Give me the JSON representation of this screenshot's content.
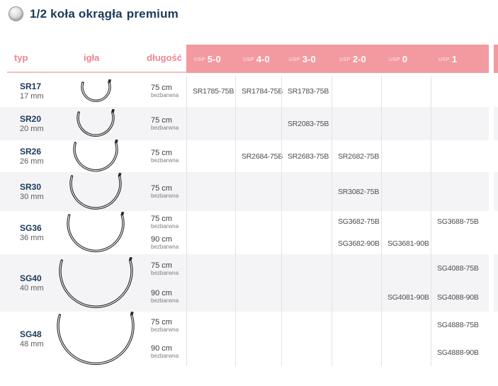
{
  "title": {
    "text": "1/2 koła okrągła",
    "accent": "premium"
  },
  "header": {
    "columns": [
      "typ",
      "igła",
      "długość"
    ],
    "usp_sizes": [
      {
        "prefix": "USP",
        "size": "5-0"
      },
      {
        "prefix": "USP",
        "size": "4-0"
      },
      {
        "prefix": "USP",
        "size": "3-0"
      },
      {
        "prefix": "USP",
        "size": "2-0"
      },
      {
        "prefix": "USP",
        "size": "0"
      },
      {
        "prefix": "USP",
        "size": "1"
      }
    ]
  },
  "colors": {
    "accent_pink": "#f29aa0",
    "pink_text": "#ef858f",
    "navy": "#1a3a5c",
    "row_alt_gray": "#f4f4f6",
    "needle_dark": "#262626"
  },
  "rows": [
    {
      "type": "SR17",
      "size_mm": "17 mm",
      "needle_icon": "half-circle-needle-icon",
      "lengths": [
        {
          "length": "75 cm",
          "color_note": "bezbarwna",
          "codes": [
            "SR1785-75B",
            "SR1784-75B",
            "SR1783-75B",
            "",
            "",
            ""
          ]
        }
      ]
    },
    {
      "type": "SR20",
      "size_mm": "20 mm",
      "needle_icon": "half-circle-needle-icon",
      "lengths": [
        {
          "length": "75 cm",
          "color_note": "bezbarwna",
          "codes": [
            "",
            "",
            "SR2083-75B",
            "",
            "",
            ""
          ]
        }
      ]
    },
    {
      "type": "SR26",
      "size_mm": "26 mm",
      "needle_icon": "half-circle-needle-icon",
      "lengths": [
        {
          "length": "75 cm",
          "color_note": "bezbarwna",
          "codes": [
            "",
            "SR2684-75B",
            "SR2683-75B",
            "SR2682-75B",
            "",
            ""
          ]
        }
      ]
    },
    {
      "type": "SR30",
      "size_mm": "30 mm",
      "needle_icon": "half-circle-needle-icon",
      "lengths": [
        {
          "length": "75 cm",
          "color_note": "bezbarwna",
          "codes": [
            "",
            "",
            "",
            "SR3082-75B",
            "",
            ""
          ]
        }
      ]
    },
    {
      "type": "SG36",
      "size_mm": "36 mm",
      "needle_icon": "half-circle-needle-icon",
      "lengths": [
        {
          "length": "75 cm",
          "color_note": "bezbarwna",
          "codes": [
            "",
            "",
            "",
            "SG3682-75B",
            "",
            "SG3688-75B"
          ]
        },
        {
          "length": "90 cm",
          "color_note": "bezbarwna",
          "codes": [
            "",
            "",
            "",
            "SG3682-90B",
            "SG3681-90B",
            ""
          ]
        }
      ]
    },
    {
      "type": "SG40",
      "size_mm": "40 mm",
      "needle_icon": "half-circle-needle-icon",
      "lengths": [
        {
          "length": "75 cm",
          "color_note": "bezbarwna",
          "codes": [
            "",
            "",
            "",
            "",
            "",
            "SG4088-75B"
          ]
        },
        {
          "length": "90 cm",
          "color_note": "bezbarwna",
          "codes": [
            "",
            "",
            "",
            "",
            "SG4081-90B",
            "SG4088-90B"
          ]
        }
      ]
    },
    {
      "type": "SG48",
      "size_mm": "48 mm",
      "needle_icon": "half-circle-needle-icon",
      "lengths": [
        {
          "length": "75 cm",
          "color_note": "bezbarwna",
          "codes": [
            "",
            "",
            "",
            "",
            "",
            "SG4888-75B"
          ]
        },
        {
          "length": "90 cm",
          "color_note": "bezbarwna",
          "codes": [
            "",
            "",
            "",
            "",
            "",
            "SG4888-90B"
          ]
        }
      ]
    }
  ]
}
